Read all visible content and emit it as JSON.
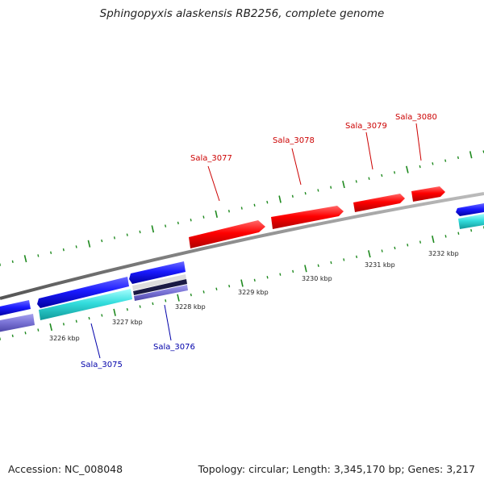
{
  "title": "Sphingopyxis alaskensis RB2256, complete genome",
  "footer": {
    "accession": "Accession: NC_008048",
    "summary": "Topology: circular; Length: 3,345,170 bp; Genes: 3,217"
  },
  "colors": {
    "forward_gene": "#ff0000",
    "reverse_gene_blue": "#1a1aff",
    "reverse_gene_cyan": "#33dddd",
    "reverse_gene_purple": "#7b74d6",
    "backbone": "#8a8a8a",
    "tick": "#1f8a1f",
    "forward_label": "#cc0000",
    "reverse_label": "#0000aa"
  },
  "scale_labels": [
    "3226 kbp",
    "3227 kbp",
    "3228 kbp",
    "3229 kbp",
    "3230 kbp",
    "3231 kbp",
    "3232 kbp"
  ],
  "gene_labels": [
    {
      "text": "Sala_3075",
      "strand": "reverse"
    },
    {
      "text": "Sala_3076",
      "strand": "reverse"
    },
    {
      "text": "Sala_3077",
      "strand": "forward"
    },
    {
      "text": "Sala_3078",
      "strand": "forward"
    },
    {
      "text": "Sala_3079",
      "strand": "forward"
    },
    {
      "text": "Sala_3080",
      "strand": "forward"
    }
  ]
}
